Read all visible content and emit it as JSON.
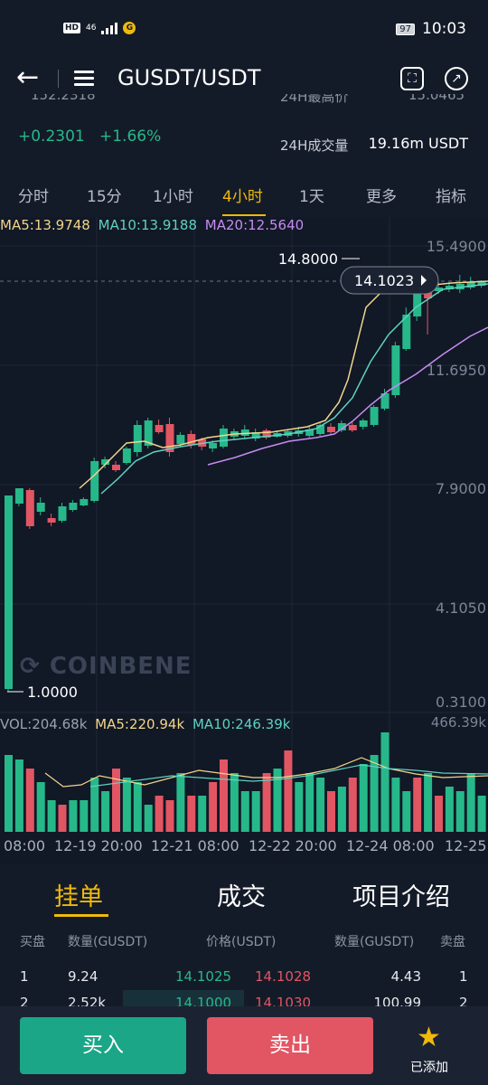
{
  "status_bar": {
    "network": "46",
    "battery": "97",
    "time": "10:03"
  },
  "header": {
    "pair": "GUSDT/USDT"
  },
  "stats": {
    "price_partial": "152.2318",
    "high_label_partial": "24H最高价",
    "high_value_partial": "15.0465",
    "change_abs": "+0.2301",
    "change_pct": "+1.66%",
    "vol_label": "24H成交量",
    "vol_value": "19.16m USDT"
  },
  "tabs": [
    "分时",
    "15分",
    "1小时",
    "4小时",
    "1天",
    "更多",
    "指标"
  ],
  "active_tab": "4小时",
  "chart": {
    "ma5": "MA5:13.9748",
    "ma10": "MA10:13.9188",
    "ma20": "MA20:12.5640",
    "price_axis": [
      "15.4900",
      "11.6950",
      "7.9000",
      "4.1050",
      "0.3100"
    ],
    "high_marker": "14.8000",
    "low_marker": "1.0000",
    "current_price": "14.1023",
    "watermark": "COINBENE",
    "vol": "VOL:204.68k",
    "vol_ma5": "MA5:220.94k",
    "vol_ma10": "MA10:246.39k",
    "vol_max": "466.39k",
    "time_axis": [
      "08:00",
      "12-19 20:00",
      "12-21 08:00",
      "12-22 20:00",
      "12-24 08:00",
      "12-25"
    ],
    "colors": {
      "up": "#27b88a",
      "down": "#e25563",
      "ma5": "#f2d58b",
      "ma10": "#5fd1c0",
      "ma20": "#c58cf0"
    }
  },
  "panel_tabs": [
    "挂单",
    "成交",
    "项目介绍"
  ],
  "orderbook": {
    "headers": [
      "买盘",
      "数量(GUSDT)",
      "价格(USDT)",
      "数量(GUSDT)",
      "卖盘"
    ],
    "rows": [
      {
        "idx": "1",
        "bid_qty": "9.24",
        "bid_price": "14.1025",
        "ask_price": "14.1028",
        "ask_qty": "4.43",
        "ask_idx": "1"
      },
      {
        "idx": "2",
        "bid_qty": "2.52k",
        "bid_price": "14.1000",
        "ask_price": "14.1030",
        "ask_qty": "100.99",
        "ask_idx": "2"
      }
    ]
  },
  "footer": {
    "buy": "买入",
    "sell": "卖出",
    "added": "已添加"
  }
}
